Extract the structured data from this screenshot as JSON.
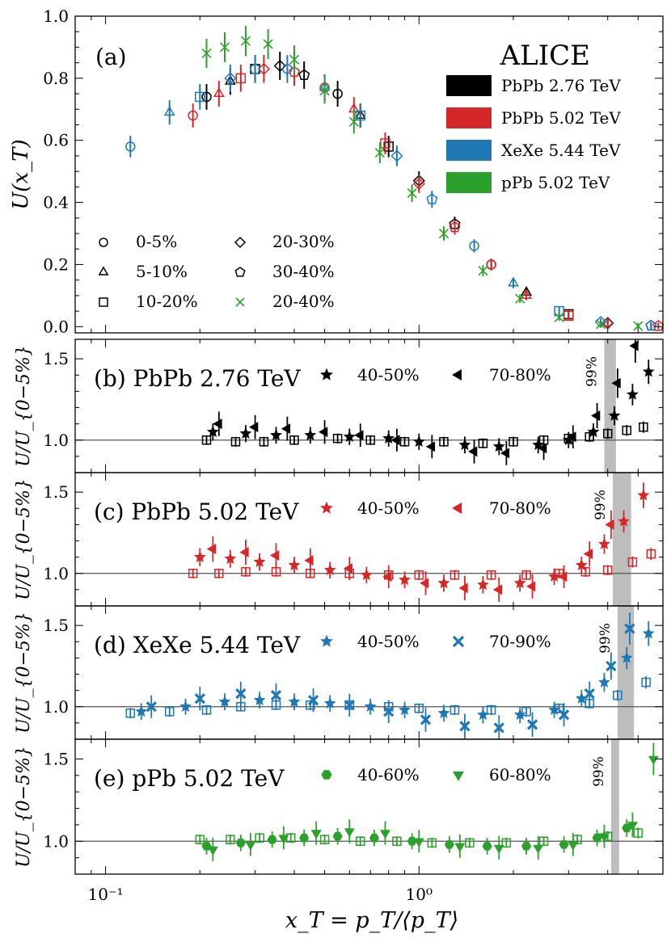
{
  "chart_data": {
    "type": "scatter",
    "xscale": "log",
    "xlabel": "x_T = p_T/⟨p_T⟩",
    "xlim": [
      0.08,
      6.0
    ],
    "x_tick_labels": [
      "10⁻¹",
      "10⁰"
    ],
    "colors": {
      "PbPb 2.76 TeV": "#000000",
      "PbPb 5.02 TeV": "#d62728",
      "XeXe 5.44 TeV": "#1f77b4",
      "pPb 5.02 TeV": "#2ca02c",
      "band": "#bdbdbd"
    },
    "panel_a": {
      "label": "(a)",
      "ylabel": "U(x_T)",
      "ylim": [
        -0.02,
        1.0
      ],
      "y_tick_labels": [
        "0.0",
        "0.2",
        "0.4",
        "0.6",
        "0.8",
        "1.0"
      ],
      "title": "ALICE",
      "legend_systems": [
        "PbPb 2.76 TeV",
        "PbPb 5.02 TeV",
        "XeXe 5.44 TeV",
        "pPb 5.02 TeV"
      ],
      "legend_centralities": [
        {
          "label": "0-5%",
          "marker": "circle"
        },
        {
          "label": "5-10%",
          "marker": "triangle"
        },
        {
          "label": "10-20%",
          "marker": "square"
        },
        {
          "label": "20-30%",
          "marker": "diamond"
        },
        {
          "label": "30-40%",
          "marker": "pentagon"
        },
        {
          "label": "20-40%",
          "marker": "cross"
        }
      ],
      "series": [
        {
          "name": "PbPb 2.76 TeV",
          "x": [
            0.21,
            0.25,
            0.3,
            0.36,
            0.43,
            0.55,
            0.65,
            0.8,
            1.0,
            1.3,
            1.7,
            2.2,
            3.0,
            4.0,
            5.5
          ],
          "y": [
            0.74,
            0.79,
            0.83,
            0.84,
            0.81,
            0.75,
            0.68,
            0.58,
            0.47,
            0.33,
            0.2,
            0.11,
            0.04,
            0.012,
            0.003
          ]
        },
        {
          "name": "PbPb 5.02 TeV",
          "x": [
            0.19,
            0.23,
            0.27,
            0.32,
            0.4,
            0.5,
            0.62,
            0.78,
            1.0,
            1.3,
            1.7,
            2.2,
            3.0,
            4.0,
            5.8
          ],
          "y": [
            0.68,
            0.75,
            0.8,
            0.83,
            0.82,
            0.77,
            0.7,
            0.59,
            0.46,
            0.32,
            0.2,
            0.1,
            0.035,
            0.01,
            0.002
          ]
        },
        {
          "name": "XeXe 5.44 TeV",
          "x": [
            0.12,
            0.16,
            0.2,
            0.25,
            0.3,
            0.38,
            0.5,
            0.65,
            0.85,
            1.1,
            1.5,
            2.0,
            2.8,
            3.8,
            5.5
          ],
          "y": [
            0.58,
            0.69,
            0.74,
            0.8,
            0.83,
            0.83,
            0.77,
            0.68,
            0.55,
            0.41,
            0.26,
            0.14,
            0.05,
            0.015,
            0.003
          ]
        },
        {
          "name": "pPb 5.02 TeV",
          "x": [
            0.21,
            0.24,
            0.28,
            0.33,
            0.4,
            0.5,
            0.62,
            0.75,
            0.95,
            1.2,
            1.6,
            2.1,
            2.8,
            3.8,
            5.0
          ],
          "y": [
            0.88,
            0.9,
            0.92,
            0.91,
            0.86,
            0.76,
            0.66,
            0.56,
            0.43,
            0.3,
            0.18,
            0.09,
            0.03,
            0.008,
            0.002
          ]
        }
      ]
    },
    "ratio_panels": [
      {
        "label": "(b) PbPb 2.76 TeV",
        "system": "PbPb 2.76 TeV",
        "ylabel": "U/U_{0−5%}",
        "ylim": [
          0.8,
          1.62
        ],
        "y_tick_labels": [
          "1.0",
          "1.5"
        ],
        "band_label": "99%",
        "band_x": [
          3.9,
          4.25
        ],
        "legend": [
          {
            "label": "40-50%",
            "marker": "star"
          },
          {
            "label": "70-80%",
            "marker": "left-triangle"
          }
        ],
        "series": [
          {
            "name": "10-20%",
            "x": [
              0.21,
              0.26,
              0.32,
              0.4,
              0.55,
              0.7,
              0.9,
              1.2,
              1.6,
              2.0,
              2.5,
              3.0,
              3.5,
              4.0,
              4.6,
              5.2
            ],
            "y": [
              1.0,
              0.99,
              0.99,
              1.0,
              1.01,
              1.0,
              0.99,
              0.99,
              0.98,
              0.99,
              1.0,
              1.01,
              1.02,
              1.04,
              1.06,
              1.08
            ]
          },
          {
            "name": "40-50%",
            "x": [
              0.22,
              0.28,
              0.35,
              0.45,
              0.6,
              0.8,
              1.0,
              1.4,
              1.8,
              2.4,
              3.0,
              3.6,
              4.2,
              4.8,
              5.4
            ],
            "y": [
              1.05,
              1.04,
              1.03,
              1.03,
              1.02,
              1.01,
              0.99,
              0.97,
              0.96,
              0.97,
              1.0,
              1.05,
              1.15,
              1.28,
              1.42
            ]
          },
          {
            "name": "70-80%",
            "x": [
              0.23,
              0.3,
              0.38,
              0.5,
              0.65,
              0.85,
              1.1,
              1.5,
              1.9,
              2.5,
              3.1,
              3.7,
              4.3,
              4.9
            ],
            "y": [
              1.1,
              1.08,
              1.07,
              1.05,
              1.03,
              1.0,
              0.96,
              0.93,
              0.92,
              0.95,
              1.02,
              1.15,
              1.35,
              1.58
            ]
          }
        ]
      },
      {
        "label": "(c) PbPb 5.02 TeV",
        "system": "PbPb 5.02 TeV",
        "ylabel": "U/U_{0−5%}",
        "ylim": [
          0.8,
          1.62
        ],
        "y_tick_labels": [
          "1.0",
          "1.5"
        ],
        "band_label": "99%",
        "band_x": [
          4.15,
          4.75
        ],
        "legend": [
          {
            "label": "40-50%",
            "marker": "star"
          },
          {
            "label": "70-80%",
            "marker": "left-triangle"
          }
        ],
        "series": [
          {
            "name": "10-20%",
            "x": [
              0.19,
              0.23,
              0.28,
              0.35,
              0.45,
              0.6,
              0.8,
              1.0,
              1.3,
              1.7,
              2.2,
              2.8,
              3.4,
              4.0,
              4.8,
              5.5
            ],
            "y": [
              1.0,
              1.0,
              1.01,
              1.01,
              1.0,
              1.0,
              0.99,
              0.99,
              0.99,
              0.99,
              0.99,
              1.0,
              1.01,
              1.02,
              1.07,
              1.12
            ]
          },
          {
            "name": "40-50%",
            "x": [
              0.2,
              0.25,
              0.31,
              0.4,
              0.52,
              0.68,
              0.9,
              1.2,
              1.6,
              2.1,
              2.7,
              3.3,
              3.9,
              4.5,
              5.2
            ],
            "y": [
              1.1,
              1.09,
              1.07,
              1.05,
              1.02,
              0.99,
              0.96,
              0.94,
              0.93,
              0.94,
              0.98,
              1.05,
              1.18,
              1.32,
              1.48
            ]
          },
          {
            "name": "70-80%",
            "x": [
              0.22,
              0.28,
              0.35,
              0.45,
              0.6,
              0.8,
              1.05,
              1.4,
              1.8,
              2.3,
              2.9,
              3.5,
              4.1
            ],
            "y": [
              1.15,
              1.13,
              1.11,
              1.08,
              1.03,
              0.98,
              0.94,
              0.91,
              0.9,
              0.92,
              0.98,
              1.12,
              1.3
            ]
          }
        ]
      },
      {
        "label": "(d) XeXe 5.44 TeV",
        "system": "XeXe 5.44 TeV",
        "ylabel": "U/U_{0−5%}",
        "ylim": [
          0.8,
          1.62
        ],
        "y_tick_labels": [
          "1.0",
          "1.5"
        ],
        "band_label": "99%",
        "band_x": [
          4.3,
          4.85
        ],
        "legend": [
          {
            "label": "40-50%",
            "marker": "star"
          },
          {
            "label": "70-90%",
            "marker": "filled-cross"
          }
        ],
        "series": [
          {
            "name": "10-20%",
            "x": [
              0.12,
              0.16,
              0.21,
              0.27,
              0.35,
              0.45,
              0.6,
              0.8,
              1.0,
              1.3,
              1.7,
              2.2,
              2.8,
              3.5,
              4.3,
              5.3
            ],
            "y": [
              0.96,
              0.97,
              0.98,
              1.0,
              1.01,
              1.01,
              1.01,
              1.0,
              0.99,
              0.98,
              0.98,
              0.97,
              0.99,
              1.02,
              1.07,
              1.15
            ]
          },
          {
            "name": "40-50%",
            "x": [
              0.13,
              0.18,
              0.24,
              0.31,
              0.4,
              0.52,
              0.7,
              0.9,
              1.2,
              1.6,
              2.1,
              2.7,
              3.3,
              3.9,
              4.6,
              5.4
            ],
            "y": [
              0.97,
              1.0,
              1.03,
              1.04,
              1.03,
              1.02,
              1.0,
              0.98,
              0.96,
              0.95,
              0.95,
              0.98,
              1.05,
              1.15,
              1.3,
              1.45
            ]
          },
          {
            "name": "70-90%",
            "x": [
              0.14,
              0.2,
              0.27,
              0.35,
              0.46,
              0.6,
              0.8,
              1.05,
              1.4,
              1.8,
              2.3,
              2.9,
              3.5,
              4.1,
              4.7
            ],
            "y": [
              1.0,
              1.05,
              1.08,
              1.07,
              1.04,
              1.01,
              0.97,
              0.92,
              0.88,
              0.87,
              0.89,
              0.95,
              1.08,
              1.25,
              1.48
            ]
          }
        ]
      },
      {
        "label": "(e) pPb 5.02 TeV",
        "system": "pPb 5.02 TeV",
        "ylabel": "U/U_{0−5%}",
        "ylim": [
          0.8,
          1.62
        ],
        "y_tick_labels": [
          "1.0",
          "1.5"
        ],
        "band_label": "99%",
        "band_x": [
          4.1,
          4.35
        ],
        "legend": [
          {
            "label": "40-60%",
            "marker": "hexagon"
          },
          {
            "label": "60-80%",
            "marker": "down-triangle"
          }
        ],
        "series": [
          {
            "name": "20-40%",
            "x": [
              0.2,
              0.25,
              0.31,
              0.39,
              0.5,
              0.65,
              0.85,
              1.1,
              1.45,
              1.9,
              2.5,
              3.2,
              4.0,
              5.0
            ],
            "y": [
              1.01,
              1.01,
              1.02,
              1.02,
              1.01,
              1.0,
              1.0,
              0.99,
              0.99,
              0.99,
              1.0,
              1.01,
              1.03,
              1.05
            ]
          },
          {
            "name": "40-60%",
            "x": [
              0.21,
              0.27,
              0.34,
              0.43,
              0.55,
              0.72,
              0.95,
              1.25,
              1.65,
              2.2,
              2.9,
              3.7,
              4.6
            ],
            "y": [
              0.97,
              0.99,
              1.01,
              1.02,
              1.03,
              1.02,
              1.0,
              0.98,
              0.97,
              0.97,
              0.98,
              1.02,
              1.08
            ]
          },
          {
            "name": "60-80%",
            "x": [
              0.22,
              0.29,
              0.37,
              0.47,
              0.6,
              0.78,
              1.0,
              1.35,
              1.8,
              2.4,
              3.1,
              3.9,
              4.8,
              5.6
            ],
            "y": [
              0.95,
              0.98,
              1.02,
              1.05,
              1.06,
              1.05,
              1.0,
              0.97,
              0.96,
              0.96,
              0.98,
              1.03,
              1.1,
              1.5
            ]
          }
        ]
      }
    ]
  }
}
